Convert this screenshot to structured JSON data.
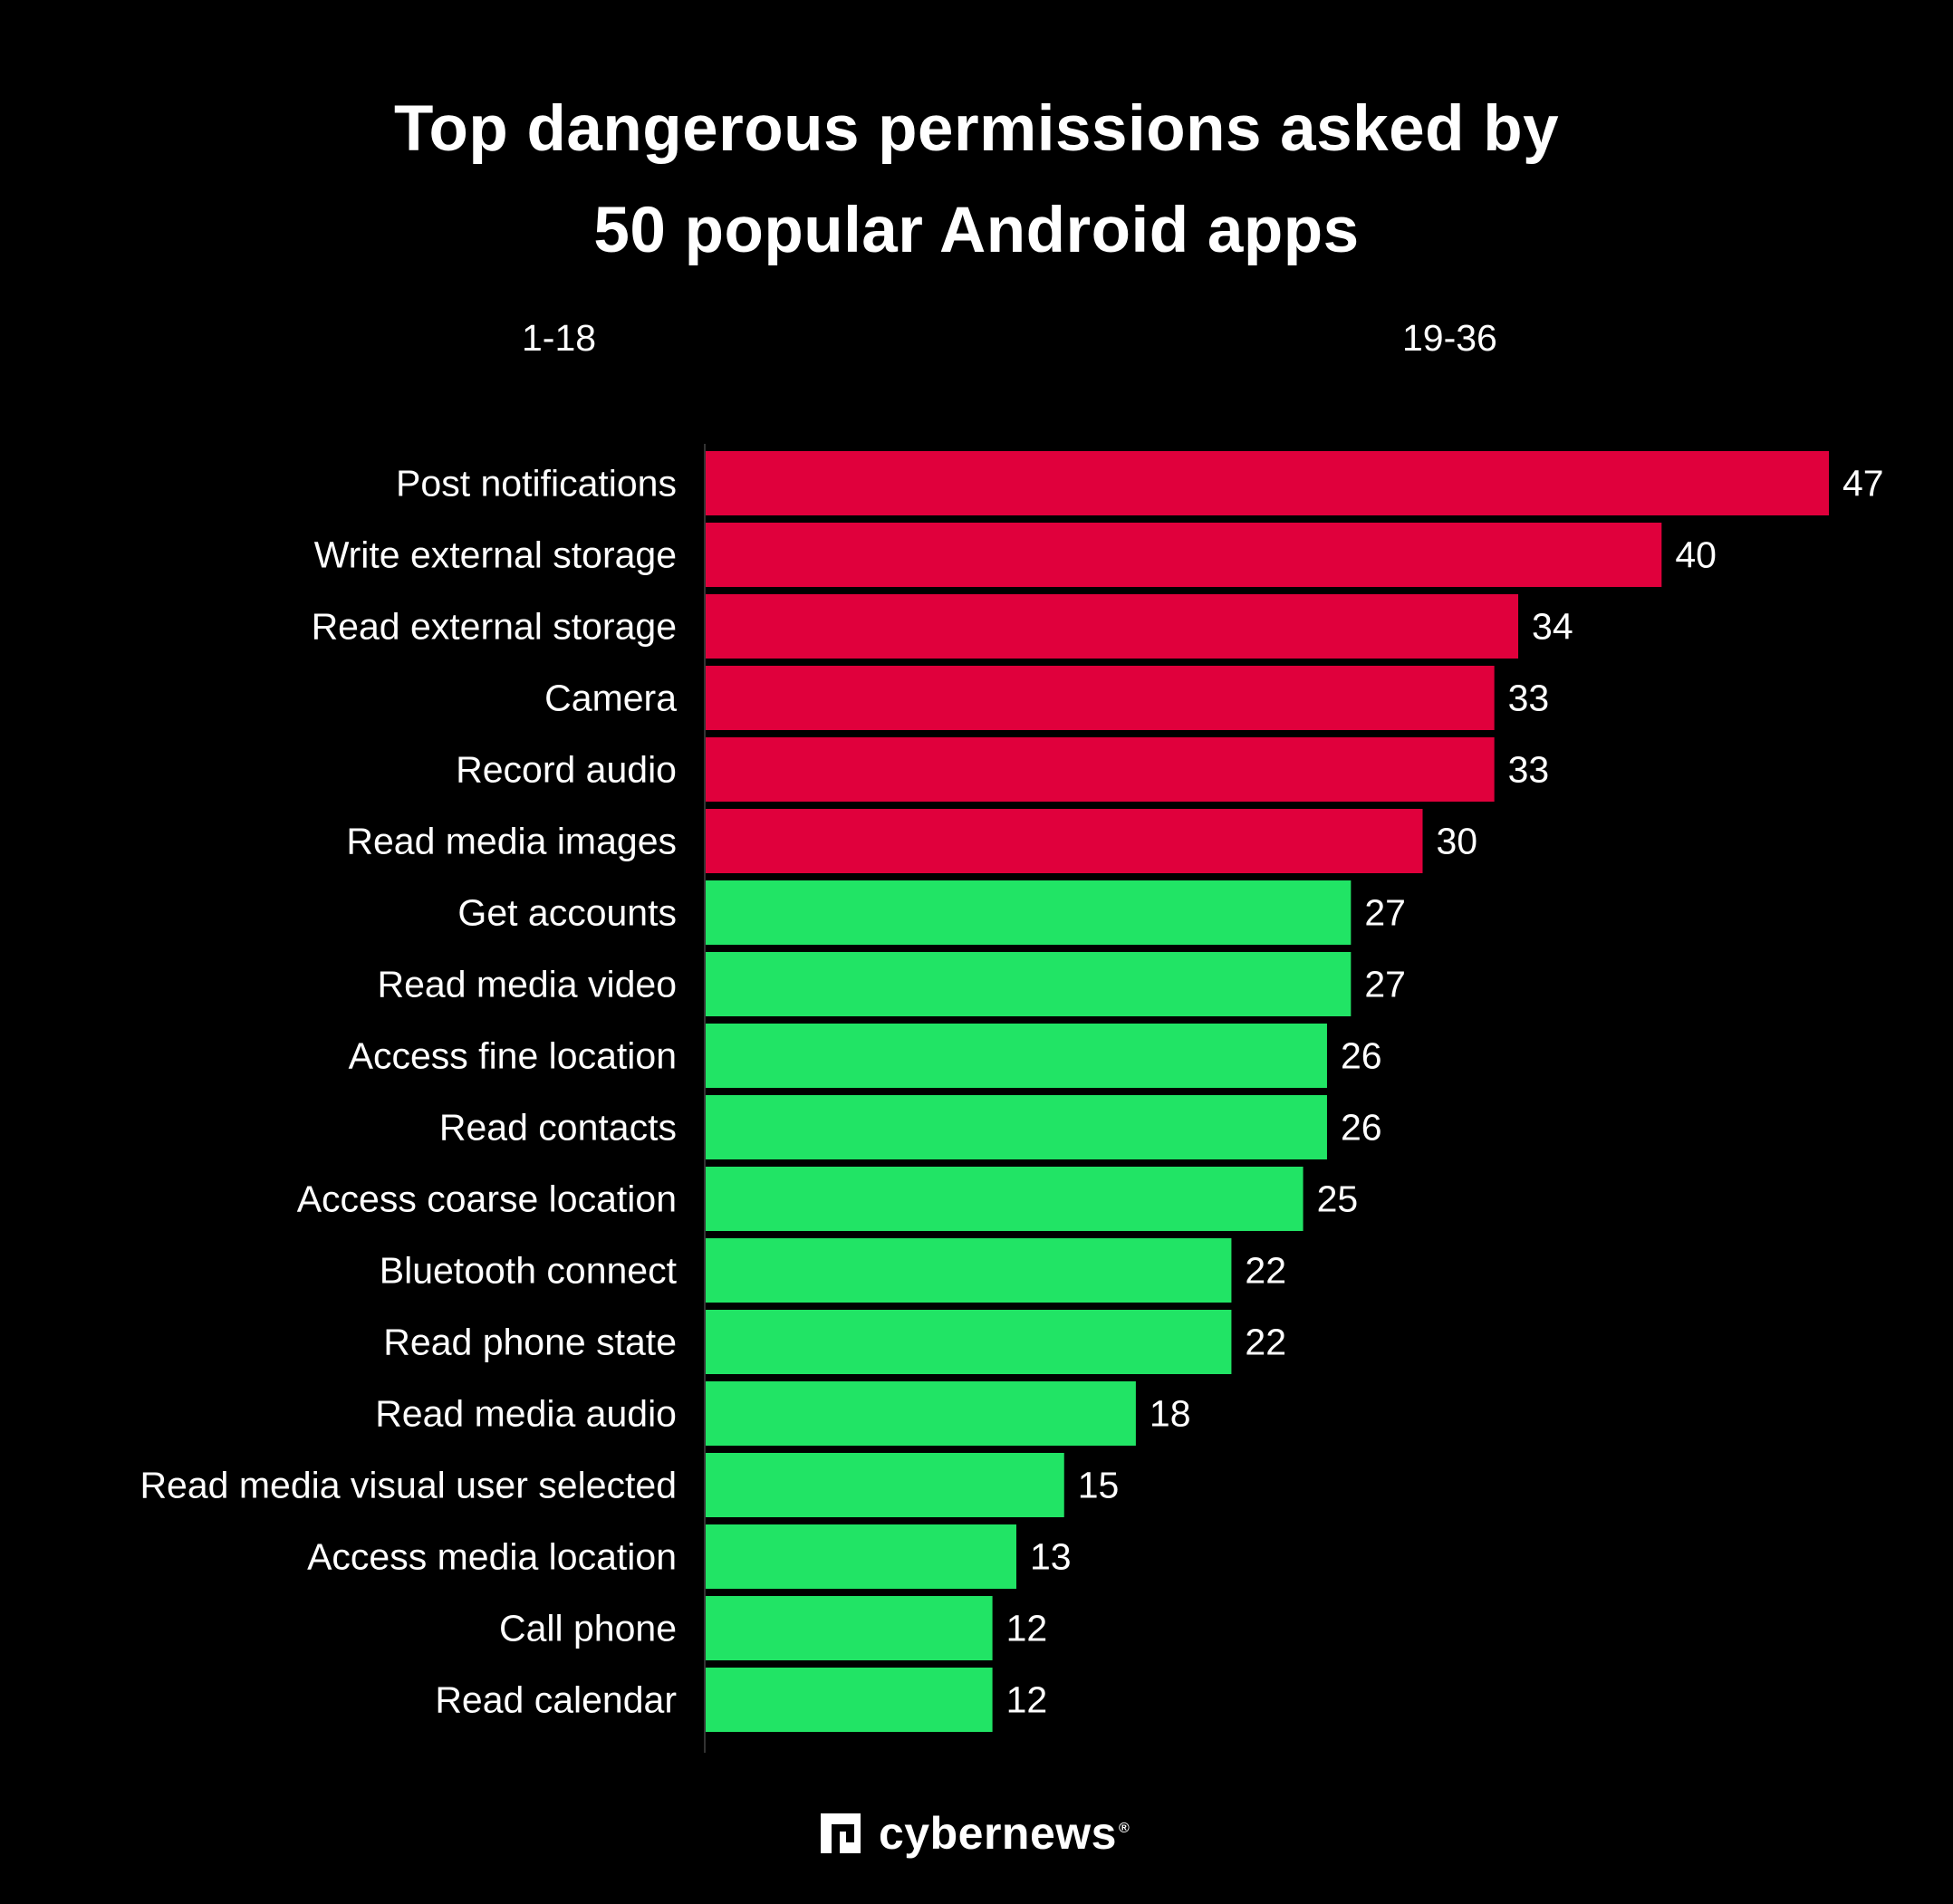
{
  "header": {
    "title_line1": "Top dangerous permissions asked by",
    "title_line2": "50 popular Android apps"
  },
  "tabs": [
    {
      "label": "1-18"
    },
    {
      "label": "19-36"
    }
  ],
  "logo": {
    "text": "cybernews",
    "reg": "®"
  },
  "colors": {
    "background": "#000000",
    "top6": "#E0003C",
    "rest": "#21E465",
    "text": "#FFFFFF"
  },
  "chart_data": {
    "type": "bar",
    "orientation": "horizontal",
    "title": "Top dangerous permissions asked by 50 popular Android apps",
    "categories": [
      "Post notifications",
      "Write external storage",
      "Read external storage",
      "Camera",
      "Record audio",
      "Read media images",
      "Get accounts",
      "Read media video",
      "Access fine location",
      "Read contacts",
      "Access coarse location",
      "Bluetooth connect",
      "Read phone state",
      "Read media audio",
      "Read media visual user selected",
      "Access media location",
      "Call phone",
      "Read calendar"
    ],
    "values": [
      47,
      40,
      34,
      33,
      33,
      30,
      27,
      27,
      26,
      26,
      25,
      22,
      22,
      18,
      15,
      13,
      12,
      12
    ],
    "highlight_count": 6,
    "xlim": [
      0,
      50
    ],
    "xlabel": "",
    "ylabel": "",
    "grid": false,
    "data_labels": true
  }
}
